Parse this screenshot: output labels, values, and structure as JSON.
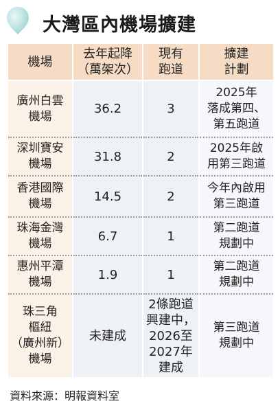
{
  "title": "大灣區內機場擴建",
  "table": {
    "headers": [
      [
        "機場"
      ],
      [
        "去年起降",
        "（萬架次）"
      ],
      [
        "現有",
        "跑道"
      ],
      [
        "擴建",
        "計劃"
      ]
    ],
    "rows": [
      {
        "airport": [
          "廣州白雲",
          "機場"
        ],
        "movements": "36.2",
        "runways": "3",
        "plan": [
          "2025年",
          "落成第四、",
          "第五跑道"
        ]
      },
      {
        "airport": [
          "深圳寶安",
          "機場"
        ],
        "movements": "31.8",
        "runways": "2",
        "plan": [
          "2025年啟",
          "用第三跑道"
        ]
      },
      {
        "airport": [
          "香港國際",
          "機場"
        ],
        "movements": "14.5",
        "runways": "2",
        "plan": [
          "今年內啟用",
          "第三跑道"
        ]
      },
      {
        "airport": [
          "珠海金灣",
          "機場"
        ],
        "movements": "6.7",
        "runways": "1",
        "plan": [
          "第二跑道",
          "規劃中"
        ]
      },
      {
        "airport": [
          "惠州平潭",
          "機場"
        ],
        "movements": "1.9",
        "runways": "1",
        "plan": [
          "第二跑道",
          "規劃中"
        ]
      },
      {
        "airport": [
          "珠三角",
          "樞紐",
          "（廣州新）",
          "機場"
        ],
        "movements": "未建成",
        "runways": [
          "2條跑道",
          "興建中，",
          "2026至",
          "2027年",
          "建成"
        ],
        "plan": [
          "第三跑道",
          "規劃中"
        ]
      }
    ]
  },
  "source": "資料來源：明報資料室",
  "colors": {
    "header_bg": "#f6dcc4",
    "airport_bg": "#fcf1e6",
    "number_bg": "#eef1f5",
    "plan_bg": "#f5f7fa",
    "bubble_accent": "#bfe6e4"
  },
  "icons": {
    "title_bubble": "balloon-icon"
  }
}
